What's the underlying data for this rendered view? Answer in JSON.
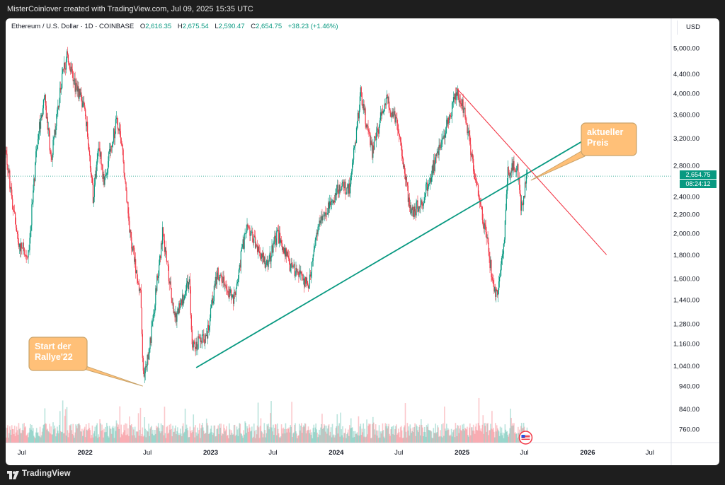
{
  "header": {
    "attribution": "MisterCoinlover created with TradingView.com, Jul 09, 2025 15:35 UTC"
  },
  "legend": {
    "symbol": "Ethereum / U.S. Dollar · 1D · COINBASE",
    "open_label": "O",
    "open": "2,616.35",
    "high_label": "H",
    "high": "2,675.54",
    "low_label": "L",
    "low": "2,590.47",
    "close_label": "C",
    "close": "2,654.75",
    "change": "+38.23 (+1.46%)"
  },
  "currency_label": "USD",
  "price_tag": {
    "price": "2,654.75",
    "countdown": "08:24:12"
  },
  "footer": {
    "brand": "TradingView"
  },
  "colors": {
    "up": "#089981",
    "down": "#f23645",
    "trendline": "#089981",
    "resistance": "#f23645",
    "callout_fill": "#ffc078",
    "callout_border": "#c9a36a"
  },
  "chart_data": {
    "type": "candlestick",
    "scale": "log",
    "ylim": [
      700,
      5500
    ],
    "y_ticks": [
      "5,000.00",
      "4,400.00",
      "4,000.00",
      "3,600.00",
      "3,200.00",
      "2,800.00",
      "2,400.00",
      "2,200.00",
      "2,000.00",
      "1,800.00",
      "1,600.00",
      "1,440.00",
      "1,280.00",
      "1,160.00",
      "1,040.00",
      "940.00",
      "840.00",
      "760.00"
    ],
    "y_tick_values": [
      5000,
      4400,
      4000,
      3600,
      3200,
      2800,
      2400,
      2200,
      2000,
      1800,
      1600,
      1440,
      1280,
      1160,
      1040,
      940,
      840,
      760
    ],
    "x_ticks": [
      "Jul",
      "2022",
      "Jul",
      "2023",
      "Jul",
      "2024",
      "Jul",
      "2025",
      "Jul",
      "2026",
      "Jul"
    ],
    "x_tick_dates": [
      "2021-07-01",
      "2022-01-01",
      "2022-07-01",
      "2023-01-01",
      "2023-07-01",
      "2024-01-01",
      "2024-07-01",
      "2025-01-01",
      "2025-07-01",
      "2026-01-01",
      "2026-07-01"
    ],
    "x_range": [
      "2021-05-15",
      "2026-09-01"
    ],
    "price_path": [
      [
        "2021-05-15",
        3000
      ],
      [
        "2021-06-20",
        1900
      ],
      [
        "2021-07-20",
        1800
      ],
      [
        "2021-08-15",
        3200
      ],
      [
        "2021-09-05",
        3900
      ],
      [
        "2021-09-25",
        2900
      ],
      [
        "2021-10-25",
        4300
      ],
      [
        "2021-11-10",
        4800
      ],
      [
        "2021-12-05",
        4100
      ],
      [
        "2022-01-01",
        3700
      ],
      [
        "2022-01-24",
        2400
      ],
      [
        "2022-02-10",
        3100
      ],
      [
        "2022-02-24",
        2600
      ],
      [
        "2022-04-03",
        3500
      ],
      [
        "2022-04-20",
        3000
      ],
      [
        "2022-05-12",
        2000
      ],
      [
        "2022-06-12",
        1450
      ],
      [
        "2022-06-18",
        1000
      ],
      [
        "2022-07-05",
        1100
      ],
      [
        "2022-08-14",
        2000
      ],
      [
        "2022-09-20",
        1300
      ],
      [
        "2022-10-31",
        1600
      ],
      [
        "2022-11-09",
        1150
      ],
      [
        "2022-12-20",
        1200
      ],
      [
        "2023-01-20",
        1650
      ],
      [
        "2023-03-10",
        1450
      ],
      [
        "2023-04-16",
        2100
      ],
      [
        "2023-06-15",
        1700
      ],
      [
        "2023-07-14",
        2000
      ],
      [
        "2023-08-20",
        1700
      ],
      [
        "2023-10-12",
        1550
      ],
      [
        "2023-11-10",
        2100
      ],
      [
        "2024-01-10",
        2500
      ],
      [
        "2024-02-10",
        2500
      ],
      [
        "2024-03-12",
        4000
      ],
      [
        "2024-04-15",
        3000
      ],
      [
        "2024-05-24",
        3900
      ],
      [
        "2024-06-28",
        3400
      ],
      [
        "2024-08-05",
        2200
      ],
      [
        "2024-09-07",
        2350
      ],
      [
        "2024-10-01",
        2650
      ],
      [
        "2024-11-10",
        3300
      ],
      [
        "2024-12-16",
        4000
      ],
      [
        "2025-01-07",
        3700
      ],
      [
        "2025-02-03",
        2800
      ],
      [
        "2025-03-10",
        2000
      ],
      [
        "2025-04-09",
        1450
      ],
      [
        "2025-05-01",
        1800
      ],
      [
        "2025-05-13",
        2700
      ],
      [
        "2025-06-10",
        2800
      ],
      [
        "2025-06-22",
        2250
      ],
      [
        "2025-07-09",
        2654.75
      ]
    ],
    "current_price": 2654.75,
    "trend_lines": [
      {
        "name": "support",
        "from": [
          "2022-11-20",
          1030
        ],
        "to": [
          "2026-02-15",
          3350
        ]
      },
      {
        "name": "resistance",
        "from": [
          "2024-12-16",
          4100
        ],
        "to": [
          "2026-02-25",
          1800
        ]
      }
    ],
    "annotations": [
      {
        "text": [
          "Start der",
          "Rallye'22"
        ],
        "points_to": [
          "2022-06-18",
          940
        ]
      },
      {
        "text": [
          "aktueller",
          "Preis"
        ],
        "points_to": [
          "2025-07-20",
          2600
        ]
      }
    ]
  }
}
